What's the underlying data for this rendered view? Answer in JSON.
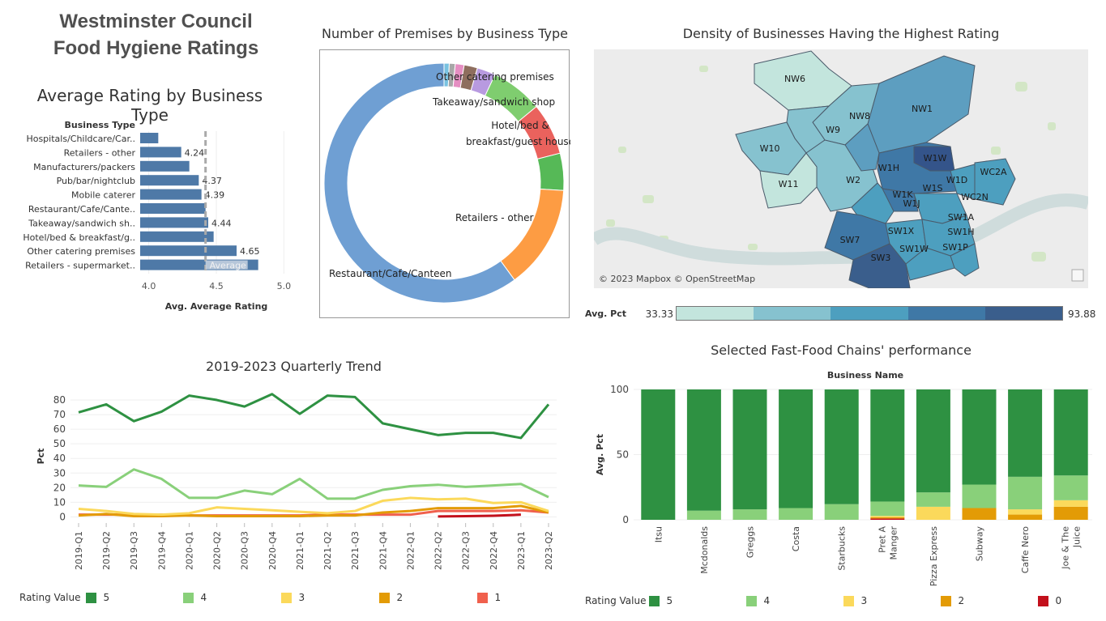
{
  "dashboard": {
    "title_line1": "Westminster Council",
    "title_line2": "Food Hygiene Ratings"
  },
  "colors": {
    "bar_blue": "#4e79a7",
    "rating_5": "#2e9142",
    "rating_4": "#89d07a",
    "rating_3": "#fbd95b",
    "rating_2": "#e39b06",
    "rating_1": "#f0604d",
    "rating_0": "#c3101c"
  },
  "avg_rating_chart": {
    "title": "Average Rating by Business Type",
    "column_header": "Business Type",
    "xlabel": "Avg. Average Rating",
    "reference_label": "Average",
    "reference_value": 4.42
  },
  "donut_chart": {
    "title": "Number of Premises by Business Type"
  },
  "map_panel": {
    "title": "Density of Businesses Having the Highest Rating",
    "attribution": "© 2023 Mapbox © OpenStreetMap",
    "legend_label": "Avg. Pct",
    "legend_min": "33.33",
    "legend_max": "93.88",
    "legend_colors": [
      "#c3e5dd",
      "#86c2cf",
      "#4d9fbf",
      "#3f78a6",
      "#3a5e8c"
    ],
    "districts": [
      "NW6",
      "NW1",
      "NW8",
      "W9",
      "W10",
      "W1W",
      "W1H",
      "WC2A",
      "W11",
      "W2",
      "W1D",
      "W1K",
      "W1S",
      "WC2N",
      "W1J",
      "SW1A",
      "SW1X",
      "SW1H",
      "SW7",
      "SW1W",
      "SW1P",
      "SW3"
    ]
  },
  "trend_legend": {
    "label": "Rating Value",
    "items": [
      "5",
      "4",
      "3",
      "2",
      "1"
    ]
  },
  "chains_legend": {
    "label": "Rating Value",
    "items": [
      "5",
      "4",
      "3",
      "2",
      "0"
    ]
  },
  "chart_data": [
    {
      "type": "bar",
      "orientation": "horizontal",
      "title": "Average Rating by Business Type",
      "xlabel": "Avg. Average Rating",
      "ylabel": "Business Type",
      "xlim": [
        3.9,
        5.1
      ],
      "xticks": [
        "4.0",
        "4.5",
        "5.0"
      ],
      "categories": [
        "Hospitals/Childcare/Car..",
        "Retailers - other",
        "Manufacturers/packers",
        "Pub/bar/nightclub",
        "Mobile caterer",
        "Restaurant/Cafe/Cante..",
        "Takeaway/sandwich sh..",
        "Hotel/bed & breakfast/g..",
        "Other catering premises",
        "Retailers - supermarket.."
      ],
      "values": [
        4.07,
        4.24,
        4.3,
        4.37,
        4.39,
        4.42,
        4.44,
        4.48,
        4.65,
        4.81
      ],
      "data_labels": [
        "",
        "4.24",
        "",
        "4.37",
        "4.39",
        "",
        "4.44",
        "",
        "4.65",
        ""
      ],
      "reference_line": {
        "label": "Average",
        "value": 4.42
      }
    },
    {
      "type": "pie",
      "title": "Number of Premises by Business Type",
      "labels": [
        "Restaurant/Cafe/Canteen",
        "Retailers - other",
        "Hotel/bed & breakfast/guest house",
        "Takeaway/sandwich shop",
        "Other catering premises",
        "Pub/bar/nightclub",
        "Manufacturers/packers",
        "Mobile caterer",
        "Hospitals/Childcare/Caring premises",
        "Retailers - supermarkets/hypermarkets"
      ],
      "display_labels": [
        "Restaurant/Cafe/Canteen",
        "Retailers - other",
        "Hotel/bed &\nbreakfast/guest house",
        "Takeaway/sandwich shop",
        "Other catering premises",
        "",
        "",
        "",
        "",
        ""
      ],
      "values": [
        60.0,
        14.0,
        5.0,
        7.0,
        7.0,
        2.5,
        1.8,
        1.2,
        0.8,
        0.7
      ],
      "colors": [
        "#6f9fd3",
        "#fd9c43",
        "#56b957",
        "#ea625d",
        "#7fcd6f",
        "#b89ae0",
        "#8e6e5e",
        "#e58ec2",
        "#a7a7a7",
        "#79c2e0"
      ]
    },
    {
      "type": "line",
      "title": "2019-2023 Quarterly Trend",
      "ylabel": "Pct",
      "ylim": [
        -2,
        85
      ],
      "yticks": [
        0,
        10,
        20,
        30,
        40,
        50,
        60,
        70,
        80
      ],
      "x": [
        "2019-Q1",
        "2019-Q2",
        "2019-Q3",
        "2019-Q4",
        "2020-Q1",
        "2020-Q2",
        "2020-Q3",
        "2020-Q4",
        "2021-Q1",
        "2021-Q2",
        "2021-Q3",
        "2021-Q4",
        "2022-Q1",
        "2022-Q2",
        "2022-Q3",
        "2022-Q4",
        "2023-Q1",
        "2023-Q2"
      ],
      "series": [
        {
          "name": "5",
          "color": "#2e9142",
          "values": [
            71.5,
            77,
            65.5,
            72,
            83,
            80,
            75.5,
            84,
            70.5,
            83,
            82,
            64,
            60,
            56,
            57.5,
            57.5,
            54,
            77
          ]
        },
        {
          "name": "4",
          "color": "#89d07a",
          "values": [
            21.5,
            20.5,
            32.5,
            26,
            13,
            13,
            18,
            15.5,
            26,
            12.5,
            12.5,
            18.5,
            21,
            22,
            20.5,
            21.5,
            22.5,
            13.5
          ]
        },
        {
          "name": "3",
          "color": "#fbd95b",
          "values": [
            5.5,
            4,
            2,
            1.5,
            2.5,
            6.5,
            5.5,
            4.5,
            3.5,
            2.5,
            4,
            11,
            13,
            12,
            12.5,
            9.5,
            10,
            4
          ]
        },
        {
          "name": "2",
          "color": "#e39b06",
          "values": [
            1,
            2,
            0.5,
            0.5,
            1,
            0.5,
            0.5,
            0.5,
            0.5,
            1,
            1,
            3,
            4,
            6,
            6,
            6,
            7.5,
            3
          ]
        },
        {
          "name": "1",
          "color": "#f0604d",
          "values": [
            1.5,
            1.5,
            1.5,
            1.5,
            1,
            1,
            1,
            1,
            1,
            1.5,
            1.5,
            1.5,
            1.5,
            4,
            4,
            4,
            4.5,
            3
          ]
        },
        {
          "name": "0",
          "color": "#c3101c",
          "values": [
            null,
            null,
            null,
            null,
            null,
            null,
            null,
            null,
            null,
            null,
            null,
            null,
            null,
            0.3,
            0.5,
            0.8,
            1.5,
            null
          ]
        }
      ]
    },
    {
      "type": "bar",
      "stacked": true,
      "title": "Selected Fast-Food Chains' performance",
      "xlabel": "Business Name",
      "ylabel": "Avg. Pct",
      "ylim": [
        0,
        100
      ],
      "yticks": [
        0,
        50,
        100
      ],
      "categories": [
        "Itsu",
        "Mcdonalds",
        "Greggs",
        "Costa",
        "Starbucks",
        "Pret A Manger",
        "Pizza Express",
        "Subway",
        "Caffe Nero",
        "Joe & The Juice"
      ],
      "category_lines": [
        [
          "Itsu"
        ],
        [
          "Mcdonalds"
        ],
        [
          "Greggs"
        ],
        [
          "Costa"
        ],
        [
          "Starbucks"
        ],
        [
          "Pret A",
          "Manger"
        ],
        [
          "Pizza Express"
        ],
        [
          "Subway"
        ],
        [
          "Caffe Nero"
        ],
        [
          "Joe & The",
          "Juice"
        ]
      ],
      "series": [
        {
          "name": "0",
          "color": "#c3101c",
          "values": [
            0,
            0,
            0,
            0,
            0,
            1,
            0,
            0,
            0,
            0
          ]
        },
        {
          "name": "2",
          "color": "#e39b06",
          "values": [
            0,
            0,
            0,
            0,
            0,
            1,
            0,
            9,
            4,
            10
          ]
        },
        {
          "name": "3",
          "color": "#fbd95b",
          "values": [
            0,
            0,
            0,
            0,
            0,
            1,
            10,
            0,
            4,
            5
          ]
        },
        {
          "name": "4",
          "color": "#89d07a",
          "values": [
            0,
            7,
            8,
            9,
            12,
            11,
            11,
            18,
            25,
            19
          ]
        },
        {
          "name": "5",
          "color": "#2e9142",
          "values": [
            100,
            93,
            92,
            91,
            88,
            86,
            79,
            73,
            67,
            66
          ]
        }
      ]
    }
  ]
}
